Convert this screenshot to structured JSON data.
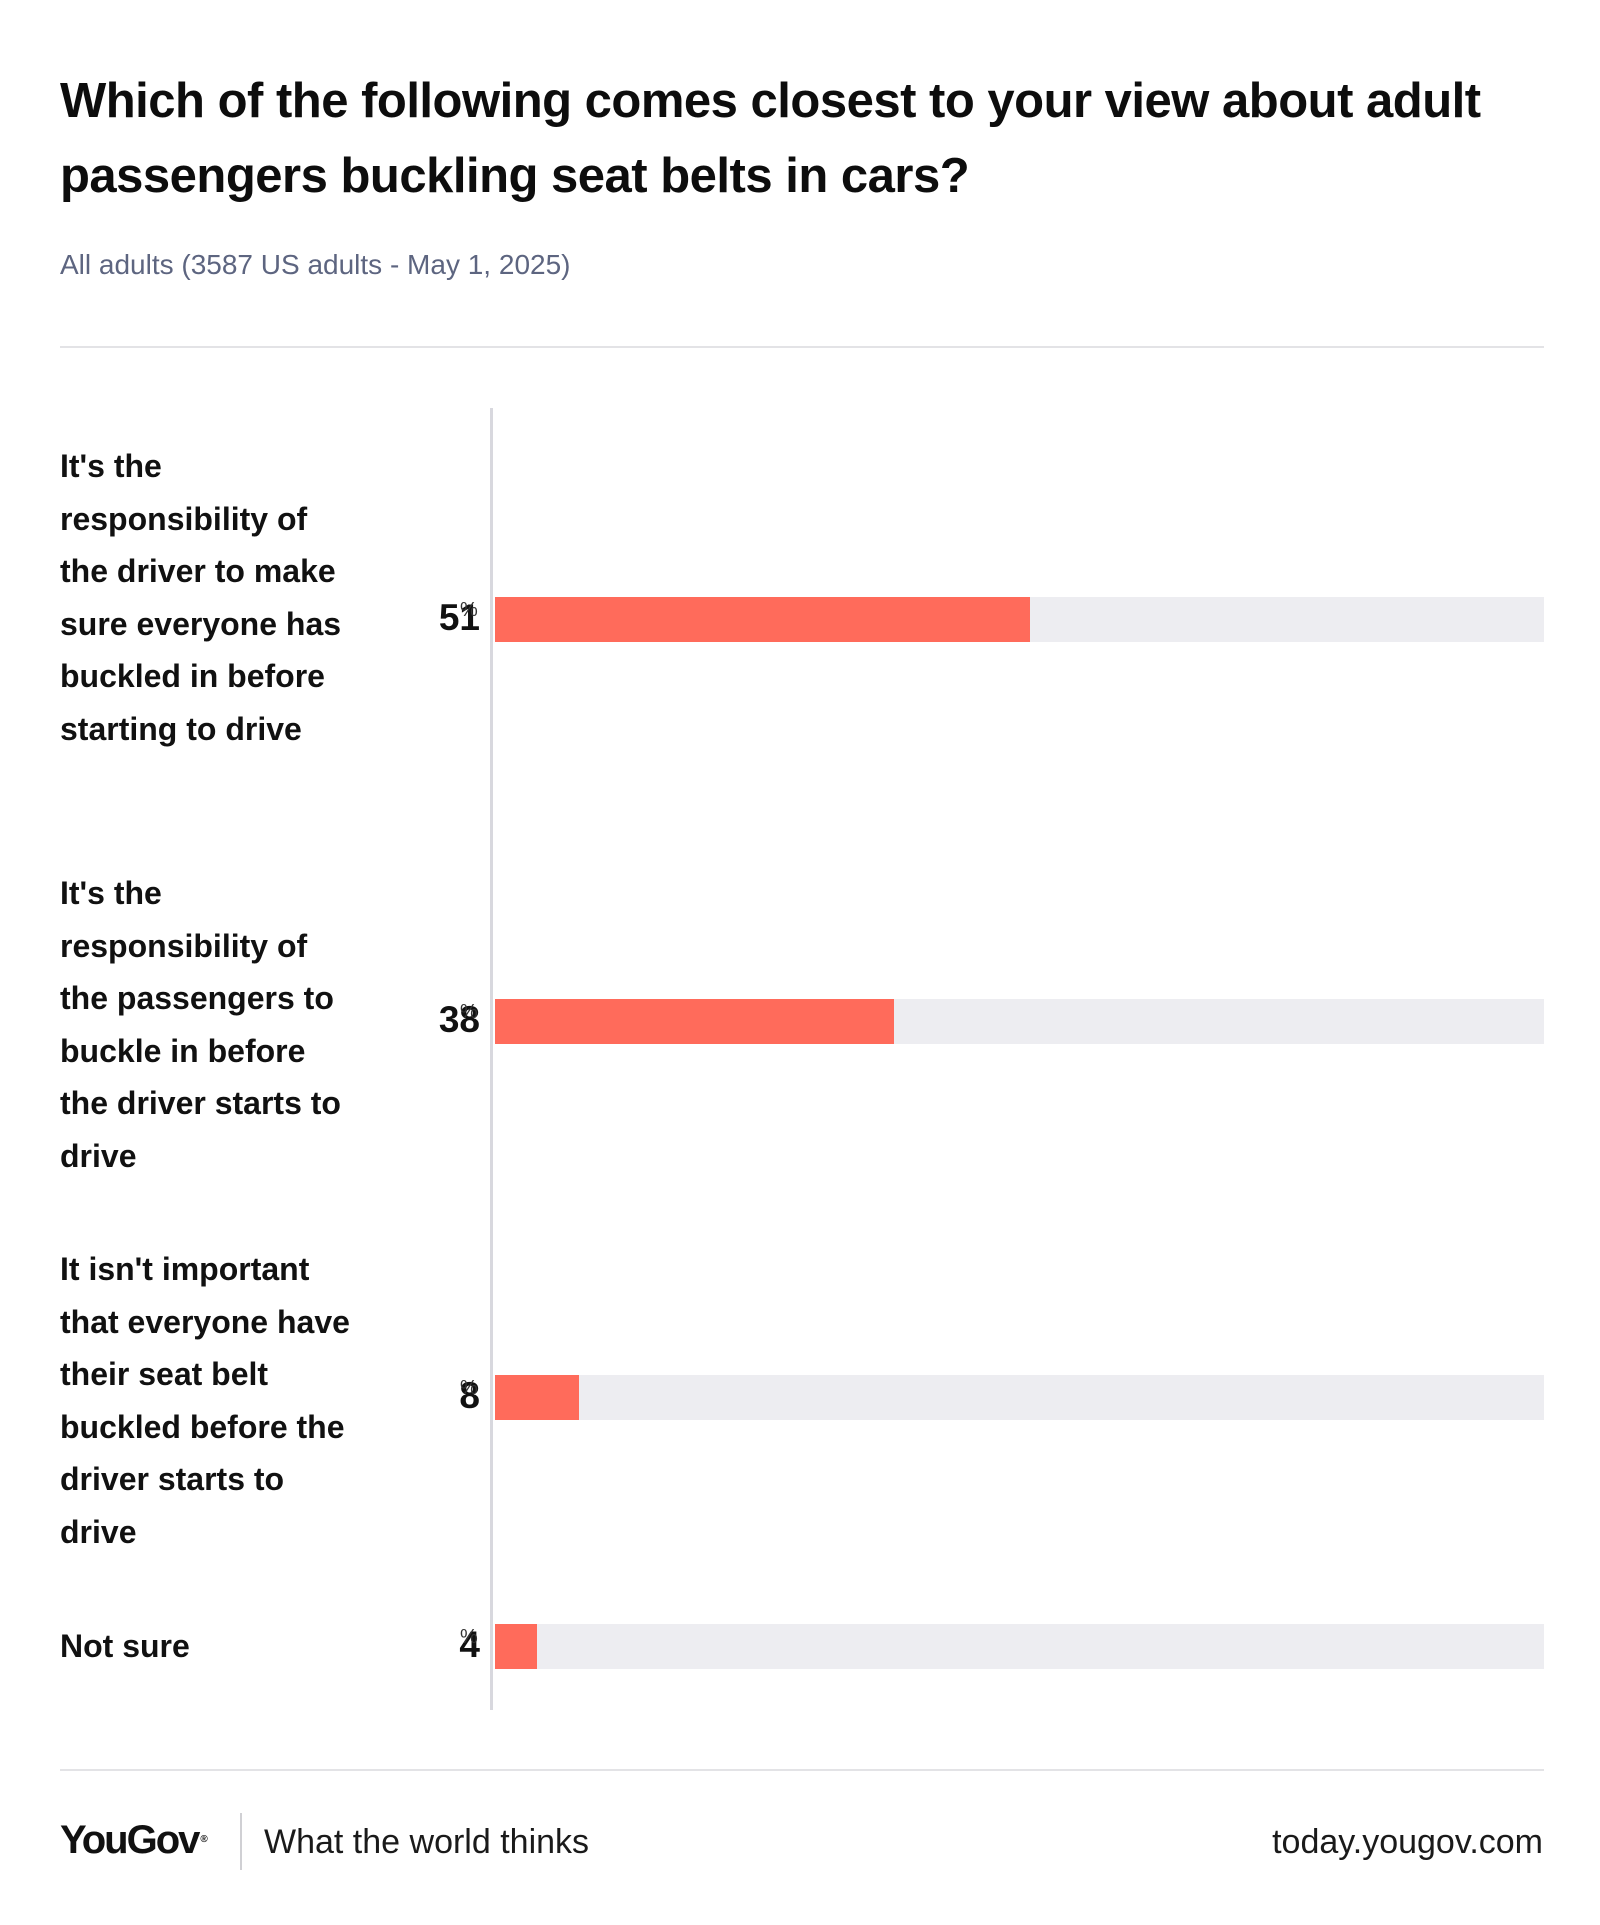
{
  "header": {
    "title": "Which of the following comes closest to your view about adult passengers buckling seat belts in cars?",
    "subtitle": "All adults (3587 US adults - May 1, 2025)"
  },
  "chart_data": {
    "type": "bar",
    "orientation": "horizontal",
    "title": "Which of the following comes closest to your view about adult passengers buckling seat belts in cars?",
    "subtitle": "All adults (3587 US adults - May 1, 2025)",
    "categories": [
      "It's the responsibility of the driver to make sure everyone has buckled in before starting to drive",
      "It's the responsibility of the passengers to buckle in before the driver starts to drive",
      "It isn't important that everyone have their seat belt buckled before the driver starts to drive",
      "Not sure"
    ],
    "values": [
      51,
      38,
      8,
      4
    ],
    "unit": "%",
    "xlim": [
      0,
      100
    ],
    "bar_color": "#ff6b5b",
    "track_color": "#ededf1",
    "grid": false,
    "legend": "none"
  },
  "footer": {
    "brand": "YouGov",
    "brand_mark": "®",
    "tagline": "What the world thinks",
    "site": "today.yougov.com"
  }
}
